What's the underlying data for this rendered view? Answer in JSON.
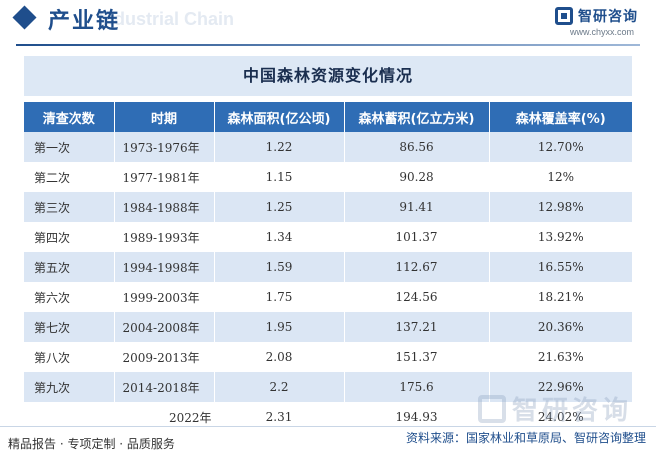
{
  "header": {
    "title": "产业链",
    "title_shadow": "Industrial Chain",
    "brand_name": "智研咨询",
    "brand_url": "www.chyxx.com",
    "accent_color": "#1f4e8c"
  },
  "table": {
    "title": "中国森林资源变化情况",
    "columns": [
      "清查次数",
      "时期",
      "森林面积(亿公顷)",
      "森林蓄积(亿立方米)",
      "森林覆盖率(%)"
    ],
    "rows": [
      [
        "第一次",
        "1973-1976年",
        "1.22",
        "86.56",
        "12.70%"
      ],
      [
        "第二次",
        "1977-1981年",
        "1.15",
        "90.28",
        "12%"
      ],
      [
        "第三次",
        "1984-1988年",
        "1.25",
        "91.41",
        "12.98%"
      ],
      [
        "第四次",
        "1989-1993年",
        "1.34",
        "101.37",
        "13.92%"
      ],
      [
        "第五次",
        "1994-1998年",
        "1.59",
        "112.67",
        "16.55%"
      ],
      [
        "第六次",
        "1999-2003年",
        "1.75",
        "124.56",
        "18.21%"
      ],
      [
        "第七次",
        "2004-2008年",
        "1.95",
        "137.21",
        "20.36%"
      ],
      [
        "第八次",
        "2009-2013年",
        "2.08",
        "151.37",
        "21.63%"
      ],
      [
        "第九次",
        "2014-2018年",
        "2.2",
        "175.6",
        "22.96%"
      ],
      [
        "2022年",
        "",
        "2.31",
        "194.93",
        "24.02%"
      ]
    ],
    "header_color": "#2f6db5",
    "stripe_color": "#dbe6f4"
  },
  "watermark": {
    "text": "智研咨询",
    "icon": "brand-logo-icon"
  },
  "footer": {
    "left": "精品报告 · 专项定制 · 品质服务",
    "source": "资料来源：国家林业和草原局、智研咨询整理"
  }
}
